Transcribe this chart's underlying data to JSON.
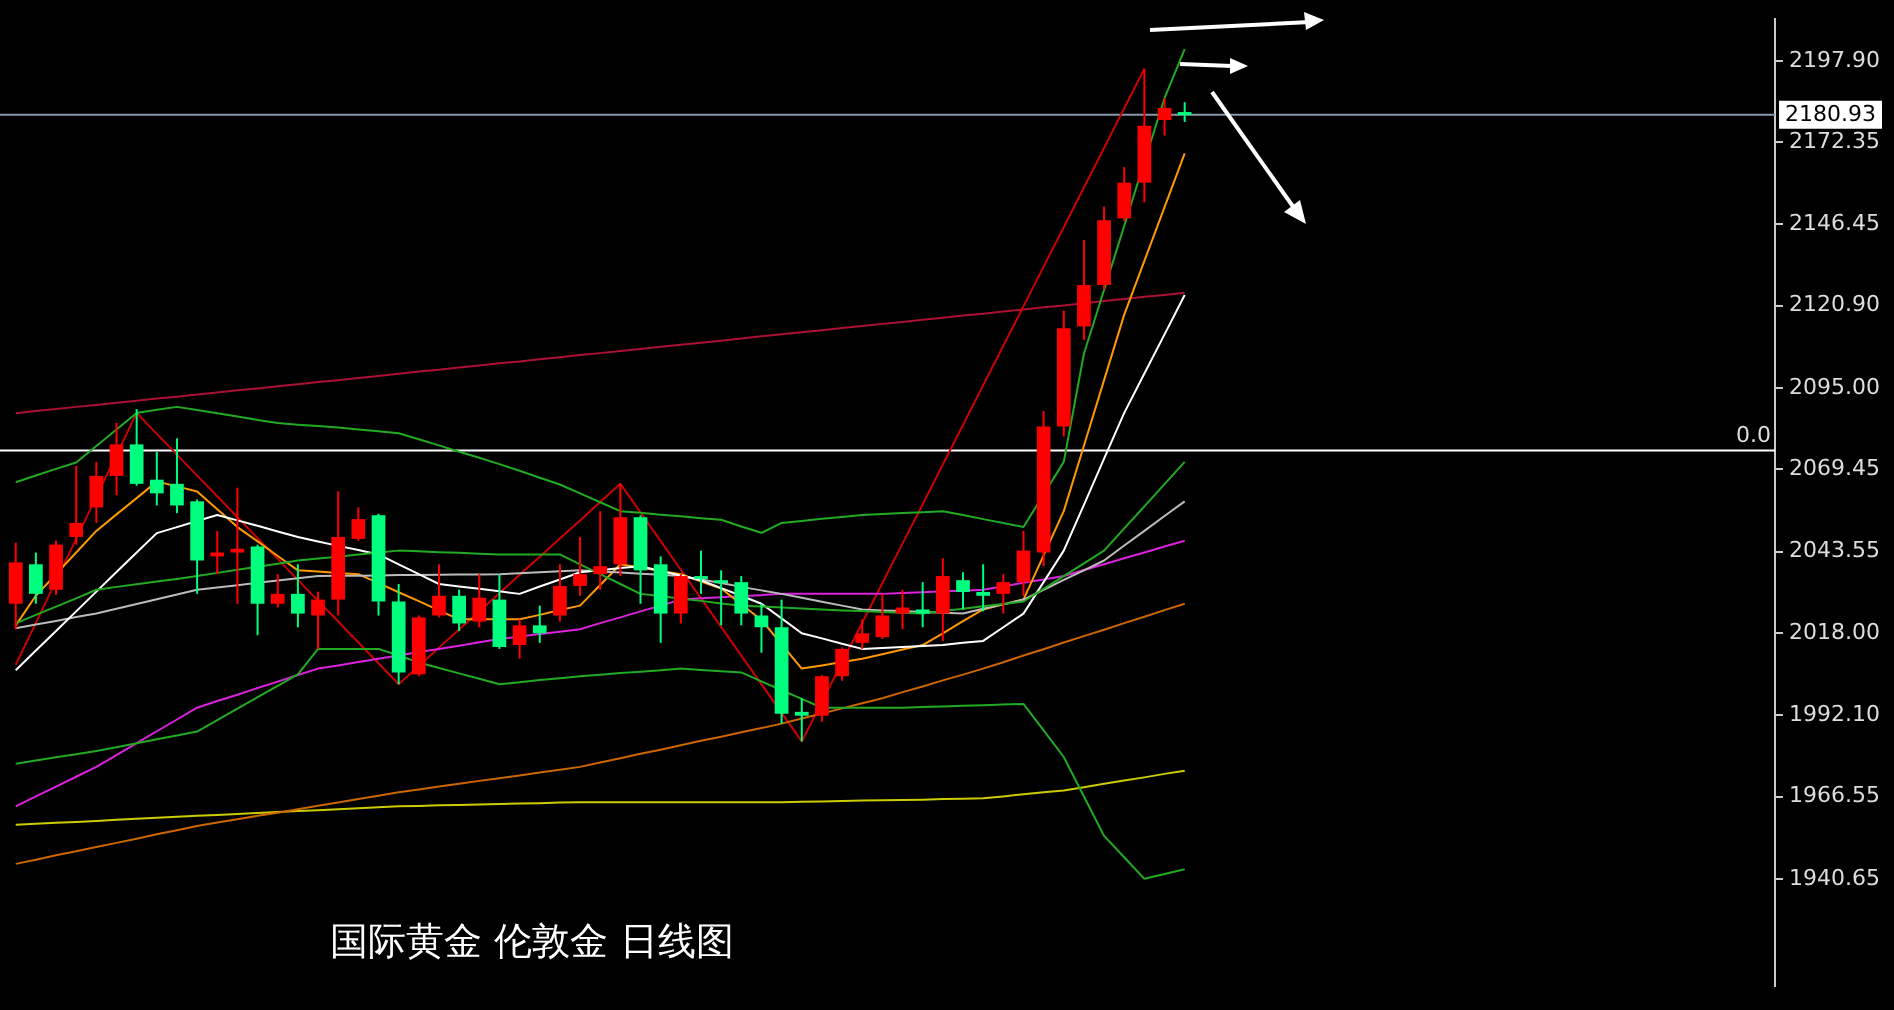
{
  "chart_data": {
    "type": "candlestick",
    "title": "国际黄金 伦敦金 日线图",
    "categories": [
      null,
      null,
      null,
      null,
      null,
      null,
      null,
      null,
      null,
      null,
      null,
      null,
      null,
      null,
      null,
      null,
      null,
      null,
      null,
      null,
      null,
      null,
      null,
      null,
      null,
      null,
      null,
      null,
      null,
      null,
      null,
      null,
      null,
      null,
      null,
      null,
      null,
      null,
      null,
      null,
      null,
      null,
      null,
      null,
      null,
      null,
      null,
      null,
      null,
      null,
      null,
      null,
      null,
      null,
      null,
      null,
      null,
      null,
      null
    ],
    "ohlc": [
      [
        2027.2,
        2046.4,
        2019.2,
        2040.2
      ],
      [
        2039.6,
        2043.3,
        2027.2,
        2030.3
      ],
      [
        2031.6,
        2047.0,
        2030.0,
        2045.8
      ],
      [
        2048.2,
        2070.5,
        2045.8,
        2052.6
      ],
      [
        2057.5,
        2071.8,
        2052.6,
        2067.4
      ],
      [
        2067.4,
        2084.1,
        2061.3,
        2077.3
      ],
      [
        2077.3,
        2088.4,
        2064.3,
        2064.9
      ],
      [
        2066.2,
        2074.9,
        2058.1,
        2061.9
      ],
      [
        2064.9,
        2079.2,
        2055.7,
        2058.1
      ],
      [
        2059.4,
        2060.0,
        2030.3,
        2040.8
      ],
      [
        2042.1,
        2050.1,
        2036.5,
        2043.3
      ],
      [
        2043.3,
        2063.7,
        2027.2,
        2044.5
      ],
      [
        2045.2,
        2045.8,
        2017.3,
        2027.2
      ],
      [
        2027.2,
        2036.5,
        2026.0,
        2030.3
      ],
      [
        2030.3,
        2039.6,
        2019.8,
        2024.1
      ],
      [
        2023.5,
        2031.0,
        2013.0,
        2028.5
      ],
      [
        2028.5,
        2062.5,
        2023.5,
        2048.2
      ],
      [
        2047.6,
        2057.5,
        2047.0,
        2053.8
      ],
      [
        2055.0,
        2055.5,
        2023.5,
        2027.9
      ],
      [
        2027.9,
        2033.4,
        2001.9,
        2005.6
      ],
      [
        2005.0,
        2023.5,
        2004.4,
        2022.9
      ],
      [
        2023.5,
        2039.6,
        2022.9,
        2029.7
      ],
      [
        2029.7,
        2031.6,
        2018.6,
        2021.0
      ],
      [
        2021.6,
        2036.5,
        2019.8,
        2029.1
      ],
      [
        2028.5,
        2036.5,
        2013.0,
        2013.6
      ],
      [
        2014.2,
        2022.3,
        2009.9,
        2020.4
      ],
      [
        2020.4,
        2026.6,
        2014.9,
        2017.9
      ],
      [
        2023.5,
        2039.6,
        2021.6,
        2032.8
      ],
      [
        2032.8,
        2048.2,
        2029.7,
        2036.5
      ],
      [
        2036.5,
        2056.3,
        2031.6,
        2039.0
      ],
      [
        2039.6,
        2064.9,
        2035.9,
        2054.4
      ],
      [
        2054.4,
        2055.0,
        2027.2,
        2037.7
      ],
      [
        2039.6,
        2042.1,
        2014.9,
        2024.1
      ],
      [
        2024.1,
        2036.5,
        2021.0,
        2035.9
      ],
      [
        2035.9,
        2043.9,
        2030.3,
        2035.3
      ],
      [
        2034.6,
        2037.7,
        2020.4,
        2034.0
      ],
      [
        2034.0,
        2035.9,
        2020.4,
        2024.1
      ],
      [
        2023.5,
        2027.2,
        2011.8,
        2019.8
      ],
      [
        2019.8,
        2028.5,
        1989.5,
        1992.6
      ],
      [
        1993.2,
        1997.5,
        1983.9,
        1992.0
      ],
      [
        1992.0,
        2004.8,
        1990.1,
        2004.4
      ],
      [
        2004.4,
        2013.5,
        2003.0,
        2013.0
      ],
      [
        2014.9,
        2022.3,
        2013.0,
        2017.9
      ],
      [
        2016.7,
        2030.3,
        2016.1,
        2023.5
      ],
      [
        2024.1,
        2031.6,
        2019.2,
        2026.0
      ],
      [
        2025.4,
        2034.0,
        2019.8,
        2024.1
      ],
      [
        2024.1,
        2041.5,
        2015.5,
        2035.9
      ],
      [
        2034.6,
        2037.1,
        2025.4,
        2030.9
      ],
      [
        2030.9,
        2039.6,
        2024.8,
        2029.7
      ],
      [
        2030.3,
        2036.5,
        2024.1,
        2034.0
      ],
      [
        2034.0,
        2050.1,
        2029.7,
        2043.9
      ],
      [
        2043.3,
        2087.8,
        2039.0,
        2082.9
      ],
      [
        2082.9,
        2119.4,
        2079.8,
        2113.8
      ],
      [
        2114.4,
        2141.6,
        2110.1,
        2127.4
      ],
      [
        2127.4,
        2152.1,
        2126.0,
        2147.8
      ],
      [
        2148.4,
        2164.5,
        2147.5,
        2159.6
      ],
      [
        2159.6,
        2195.4,
        2153.4,
        2177.5
      ],
      [
        2179.3,
        2186.2,
        2174.4,
        2183.1
      ],
      [
        2181.8,
        2184.9,
        2178.7,
        2180.93
      ]
    ],
    "colors": [
      "#ff0000",
      "#00ff7f",
      "#ff0000",
      "#ff0000",
      "#ff0000",
      "#ff0000",
      "#00ff7f",
      "#00ff7f",
      "#00ff7f",
      "#00ff7f",
      "#ff0000",
      "#ff0000",
      "#00ff7f",
      "#ff0000",
      "#00ff7f",
      "#ff0000",
      "#ff0000",
      "#ff0000",
      "#00ff7f",
      "#00ff7f",
      "#ff0000",
      "#ff0000",
      "#00ff7f",
      "#ff0000",
      "#00ff7f",
      "#ff0000",
      "#00ff7f",
      "#ff0000",
      "#ff0000",
      "#ff0000",
      "#ff0000",
      "#00ff7f",
      "#00ff7f",
      "#ff0000",
      "#00ff7f",
      "#00ff7f",
      "#00ff7f",
      "#00ff7f",
      "#00ff7f",
      "#00ff7f",
      "#ff0000",
      "#ff0000",
      "#ff0000",
      "#ff0000",
      "#ff0000",
      "#00ff7f",
      "#ff0000",
      "#00ff7f",
      "#00ff7f",
      "#ff0000",
      "#ff0000",
      "#ff0000",
      "#ff0000",
      "#ff0000",
      "#ff0000",
      "#ff0000",
      "#ff0000",
      "#ff0000",
      "#00ff7f"
    ],
    "series": [
      {
        "type": "line",
        "color": "#22aa22",
        "values": [
          2065.4,
          2067.5,
          2069.6,
          2071.6,
          2076.8,
          2082.0,
          2087.2,
          2088.2,
          2089.1,
          2088.1,
          2087.1,
          2086.1,
          2085.0,
          2084.0,
          2083.5,
          2083.1,
          2082.6,
          2082.0,
          2081.4,
          2080.8,
          2078.9,
          2077.0,
          2075.0,
          2073.1,
          2071.1,
          2069.0,
          2066.8,
          2064.7,
          2061.9,
          2059.1,
          2056.3,
          2055.8,
          2055.2,
          2054.7,
          2054.1,
          2053.6,
          2051.5,
          2049.5,
          2052.6,
          2053.2,
          2053.9,
          2054.5,
          2055.1,
          2055.4,
          2055.7,
          2056.0,
          2056.3,
          2055.1,
          2053.8,
          2052.6,
          2051.3,
          null,
          2071.8,
          2105.8,
          null,
          null,
          null,
          2186.2,
          2201.6
        ]
      },
      {
        "type": "line",
        "color": "#22aa22",
        "values": [
          2021.0,
          2023.7,
          2026.3,
          2028.9,
          2031.6,
          2032.5,
          2033.3,
          2034.2,
          2035.0,
          2035.9,
          2036.9,
          2037.9,
          2038.8,
          2039.8,
          2040.8,
          2041.4,
          2042.0,
          2042.7,
          2043.3,
          2043.9,
          2043.7,
          2043.4,
          2043.2,
          2042.9,
          2042.7,
          2042.7,
          2042.7,
          2042.7,
          2039.6,
          2036.5,
          2033.4,
          2030.3,
          2029.6,
          2028.8,
          2028.1,
          2027.3,
          2026.6,
          2026.3,
          2026.0,
          2025.7,
          2025.4,
          2025.1,
          2024.9,
          2024.6,
          2024.4,
          2024.1,
          2024.9,
          2025.6,
          2026.4,
          2027.1,
          2027.9,
          2031.9,
          2035.9,
          2039.9,
          2043.9,
          2050.9,
          2057.8,
          2064.8,
          2071.8
        ]
      },
      {
        "type": "line",
        "color": "#22aa22",
        "values": [
          1976.9,
          1977.9,
          1978.9,
          1979.9,
          1980.9,
          1982.1,
          1983.3,
          1984.6,
          1985.8,
          1987.0,
          1990.6,
          1994.2,
          1997.8,
          2001.4,
          2005.0,
          2013.0,
          2013.0,
          2013.0,
          2013.0,
          2010.9,
          2008.7,
          2007.0,
          2005.3,
          2003.6,
          2001.9,
          2002.5,
          2003.2,
          2003.8,
          2004.4,
          2004.9,
          2005.4,
          2005.8,
          2006.3,
          2006.8,
          2006.4,
          2006.0,
          2005.6,
          2002.8,
          2000.0,
          1997.3,
          1994.5,
          1994.5,
          1994.5,
          1994.5,
          1994.5,
          1994.7,
          1994.9,
          1995.1,
          1995.3,
          1995.5,
          1995.7,
          1987.4,
          1979.0,
          1966.6,
          1954.2,
          1947.5,
          1940.7,
          1942.2,
          1943.7
        ]
      },
      {
        "type": "line",
        "color": "#ffffff",
        "values": [
          2006.3,
          2012.5,
          2018.6,
          2024.8,
          2031.0,
          2037.2,
          2043.3,
          2049.4,
          2051.3,
          2053.2,
          2055.1,
          2053.4,
          2051.7,
          2049.9,
          2048.2,
          2046.8,
          2045.4,
          2044.1,
          2042.7,
          2039.6,
          2036.5,
          2033.4,
          2032.6,
          2031.9,
          2031.1,
          2030.3,
          2032.6,
          2034.8,
          2037.1,
          2037.7,
          2038.4,
          2039.0,
          2037.5,
          2036.1,
          2034.6,
          2032.1,
          2029.7,
          2027.2,
          2022.6,
          2017.9,
          2016.3,
          2014.6,
          2013.0,
          2013.3,
          2013.6,
          2013.9,
          2014.2,
          2014.9,
          2015.5,
          2019.8,
          2024.1,
          2034.0,
          2043.9,
          2058.3,
          2072.8,
          2087.2,
          2099.6,
          2111.9,
          2124.3
        ]
      },
      {
        "type": "line",
        "color": "#bbbbbb",
        "values": [
          2019.5,
          2020.7,
          2021.8,
          2023.0,
          2024.1,
          2025.6,
          2027.1,
          2028.6,
          2030.1,
          2031.6,
          2032.3,
          2033.0,
          2033.8,
          2034.5,
          2035.2,
          2035.9,
          2036.0,
          2036.0,
          2036.1,
          2036.2,
          2036.2,
          2036.3,
          2036.4,
          2036.4,
          2036.5,
          2036.8,
          2037.1,
          2037.4,
          2037.7,
          2037.3,
          2037.0,
          2036.6,
          2036.3,
          2035.9,
          2034.8,
          2033.7,
          2032.5,
          2031.4,
          2030.3,
          2029.1,
          2027.8,
          2026.6,
          2025.4,
          2025.1,
          2024.9,
          2024.6,
          2024.4,
          2024.1,
          2025.6,
          2027.0,
          2028.5,
          2031.6,
          2034.7,
          2037.7,
          2040.8,
          2045.5,
          2050.1,
          2054.8,
          2059.4
        ]
      },
      {
        "type": "line",
        "color": "#ff9900",
        "values": [
          2020.4,
          2029.7,
          2036.5,
          2043.3,
          2050.1,
          2055.3,
          2060.4,
          2065.6,
          2064.1,
          2062.5,
          2056.9,
          2051.3,
          2046.8,
          2042.2,
          2037.7,
          2037.3,
          2036.9,
          2036.5,
          2033.7,
          2030.8,
          2028.0,
          2025.1,
          2022.3,
          2022.3,
          2022.3,
          2022.3,
          2023.7,
          2025.2,
          2026.6,
          2033.1,
          2039.6,
          null,
          null,
          2036.5,
          2034.2,
          2032.0,
          null,
          2022.1,
          null,
          2006.8,
          2007.8,
          2008.9,
          2009.9,
          2011.3,
          2012.8,
          2014.2,
          2017.9,
          2021.7,
          2025.4,
          2027.0,
          2028.5,
          2042.4,
          2056.3,
          2076.9,
          2097.5,
          2118.1,
          2135.0,
          2151.9,
          2168.8
        ]
      },
      {
        "type": "line",
        "color": "#dd22dd",
        "values": [
          1963.5,
          1966.6,
          1969.7,
          1972.8,
          1975.9,
          1979.6,
          1983.4,
          1987.1,
          1990.8,
          1994.5,
          1996.6,
          1998.6,
          2000.7,
          2002.7,
          2004.8,
          2006.8,
          2007.8,
          2008.9,
          2009.9,
          2010.9,
          2012.0,
          2013.0,
          2014.0,
          2015.1,
          2016.1,
          2016.9,
          2017.7,
          2018.4,
          2019.2,
          2021.1,
          2022.9,
          2024.8,
          2026.6,
          2028.5,
          2028.9,
          2029.2,
          2029.6,
          2029.9,
          2030.3,
          2030.3,
          2030.3,
          2030.3,
          2030.3,
          2030.3,
          2030.6,
          2030.8,
          2031.1,
          2031.3,
          2031.6,
          2032.7,
          2033.8,
          2034.8,
          2035.9,
          2037.8,
          2039.6,
          2041.5,
          2043.3,
          2045.2,
          2047.0
        ]
      },
      {
        "type": "line",
        "color": "#cc6600",
        "values": [
          1945.4,
          1946.7,
          1948.1,
          1949.4,
          1950.7,
          1952.0,
          1953.3,
          1954.7,
          1956.0,
          1957.3,
          1958.4,
          1959.4,
          1960.5,
          1961.5,
          1962.6,
          1963.7,
          1964.7,
          1965.8,
          1966.8,
          1967.9,
          1968.8,
          1969.7,
          1970.6,
          1971.5,
          1972.3,
          1973.2,
          1974.1,
          1975.0,
          1975.9,
          1977.3,
          1978.6,
          1980.0,
          1981.3,
          1982.7,
          1984.1,
          1985.4,
          1986.8,
          1988.1,
          1989.5,
          1991.1,
          1992.7,
          1994.3,
          1995.9,
          1997.5,
          1999.4,
          2001.2,
          2003.1,
          2004.9,
          2006.8,
          2008.8,
          2010.9,
          2012.9,
          2015.0,
          2017.0,
          2019.0,
          2021.1,
          2023.1,
          2025.2,
          2027.2
        ]
      },
      {
        "type": "line",
        "color": "#cccc00",
        "values": [
          1957.7,
          1958.0,
          1958.3,
          1958.6,
          1958.9,
          1959.3,
          1959.6,
          1959.9,
          1960.2,
          1960.5,
          1960.8,
          1961.1,
          1961.4,
          1961.7,
          1962.0,
          1962.3,
          1962.6,
          1962.9,
          1963.2,
          1963.5,
          1963.6,
          1963.8,
          1963.9,
          1964.1,
          1964.2,
          1964.4,
          1964.5,
          1964.7,
          1964.8,
          1964.8,
          1964.8,
          1964.8,
          1964.8,
          1964.8,
          1964.8,
          1964.8,
          1964.8,
          1964.8,
          1964.8,
          1964.9,
          1965.0,
          1965.2,
          1965.3,
          1965.4,
          1965.5,
          1965.6,
          1965.8,
          1965.9,
          1966.0,
          1966.6,
          1967.3,
          1967.9,
          1968.5,
          1969.5,
          1970.6,
          1971.6,
          1972.6,
          1973.7,
          1974.7
        ]
      },
      {
        "type": "line",
        "color": "#cc0000",
        "values": [
          2008.0,
          2021.2,
          2034.4,
          2047.6,
          2060.8,
          2074.0,
          2087.2,
          2080.6,
          2074.1,
          2067.5,
          2061.0,
          2054.4,
          2047.8,
          2041.3,
          2034.7,
          2028.1,
          2021.6,
          2015.0,
          2008.5,
          2001.9,
          2007.6,
          2013.4,
          2019.1,
          2024.8,
          2030.5,
          2036.3,
          2042.0,
          2047.7,
          2053.4,
          2059.2,
          2064.9,
          2055.9,
          2046.9,
          2037.9,
          2028.9,
          2019.9,
          2010.9,
          2001.9,
          1992.9,
          1983.9,
          1996.3,
          2008.8,
          2021.2,
          2033.7,
          2046.1,
          2058.5,
          2071.0,
          2083.4,
          2095.9,
          2108.3,
          2120.7,
          2133.2,
          2145.6,
          2158.1,
          2170.5,
          2183.0,
          2195.4,
          null,
          null
        ]
      },
      {
        "type": "line",
        "color": "#aa1133",
        "values": [
          2087.1,
          2087.8,
          2088.4,
          2089.1,
          2089.7,
          2090.4,
          2091.0,
          2091.7,
          2092.3,
          2093.0,
          2093.6,
          2094.3,
          2094.9,
          2095.6,
          2096.2,
          2096.9,
          2097.5,
          2098.2,
          2098.8,
          2099.5,
          2100.2,
          2100.8,
          2101.5,
          2102.1,
          2102.8,
          2103.4,
          2104.1,
          2104.7,
          2105.4,
          2106.0,
          2106.7,
          2107.3,
          2108.0,
          2108.6,
          2109.3,
          2109.9,
          2110.6,
          2111.3,
          2111.9,
          2112.6,
          2113.2,
          2113.9,
          2114.5,
          2115.2,
          2115.8,
          2116.5,
          2117.1,
          2117.8,
          2118.4,
          2119.1,
          2119.7,
          2120.4,
          2121.0,
          2121.7,
          2122.4,
          2123.0,
          2123.7,
          2124.3,
          2125.0
        ]
      }
    ],
    "ref_lines": [
      {
        "axis": "y",
        "value": 2180.93,
        "label": "2180.93",
        "color": "#8899aa"
      },
      {
        "axis": "y",
        "value": 2075.4,
        "color": "#ffffff"
      }
    ],
    "annotations": [
      "0.0"
    ],
    "ylim": [
      1907,
      2211
    ],
    "yticks": [
      {
        "value": 2197.9,
        "label": "2197.90"
      },
      {
        "value": 2172.35,
        "label": "2172.35"
      },
      {
        "value": 2146.45,
        "label": "2146.45"
      },
      {
        "value": 2120.9,
        "label": "2120.90"
      },
      {
        "value": 2095.0,
        "label": "2095.00"
      },
      {
        "value": 2069.45,
        "label": "2069.45"
      },
      {
        "value": 2043.55,
        "label": "2043.55"
      },
      {
        "value": 2018.0,
        "label": "2018.00"
      },
      {
        "value": 1992.1,
        "label": "1992.10"
      },
      {
        "value": 1966.55,
        "label": "1966.55"
      },
      {
        "value": 1940.65,
        "label": "1940.65"
      }
    ],
    "tick_labels": "y",
    "grid": false,
    "legend": false
  }
}
